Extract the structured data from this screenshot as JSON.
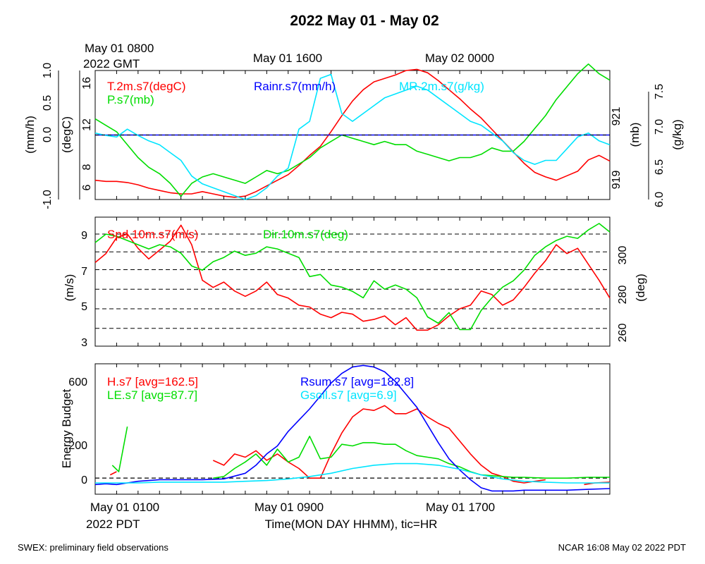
{
  "title": "2022 May 01 - May 02",
  "footer": {
    "left": "SWEX: preliminary field observations",
    "right": "NCAR 16:08 May 02 2022 PDT"
  },
  "top_time_axis": {
    "start_label_line1": "May 01 0800",
    "start_label_line2": "2022 GMT",
    "labels": [
      "May 01 1600",
      "May 02 0000"
    ]
  },
  "bottom_time_axis": {
    "labels": [
      "May 01 0100",
      "May 01 0900",
      "May 01 1700"
    ],
    "start_label_line2": "2022 PDT",
    "xlabel": "Time(MON DAY HHMM), tic=HR",
    "range_hours_pdt": [
      0,
      24
    ]
  },
  "colors": {
    "red": "#ff0000",
    "green": "#00dd00",
    "blue": "#0000ff",
    "cyan": "#00e5ff",
    "black": "#000000"
  },
  "chart_data": [
    {
      "type": "line",
      "panel": "thermo",
      "legend": [
        "T.2m.s7(degC)",
        "P.s7(mb)",
        "Rainr.s7(mm/h)",
        "MR.2m.s7(g/kg)"
      ],
      "axes": {
        "rain": {
          "label": "(mm/h)",
          "ticks": [
            "1.0",
            "0.5",
            "0.0",
            "-1.0"
          ],
          "range": [
            -1.0,
            1.0
          ]
        },
        "temp": {
          "label": "(degC)",
          "ticks": [
            "16",
            "12",
            "8",
            "6"
          ],
          "range": [
            5.3,
            16.7
          ]
        },
        "pres": {
          "label": "(mb)",
          "ticks": [
            "921",
            "919"
          ],
          "range": [
            918.3,
            922.3
          ]
        },
        "mr": {
          "label": "(g/kg)",
          "ticks": [
            "7.5",
            "7.0",
            "6.5",
            "6.0"
          ],
          "range": [
            6.0,
            7.65
          ]
        }
      },
      "series": [
        {
          "name": "T.2m.s7(degC)",
          "color": "red",
          "axis": "temp",
          "x": [
            0,
            0.5,
            1,
            1.5,
            2,
            2.5,
            3,
            3.5,
            4,
            4.5,
            5,
            5.5,
            6,
            6.5,
            7,
            7.5,
            8,
            8.5,
            9,
            9.5,
            10,
            10.5,
            11,
            11.5,
            12,
            12.5,
            13,
            13.5,
            14,
            14.5,
            15,
            15.5,
            16,
            16.5,
            17,
            17.5,
            18,
            18.5,
            19,
            19.5,
            20,
            20.5,
            21,
            21.5,
            22,
            22.5,
            23,
            23.5,
            24
          ],
          "y": [
            7.0,
            6.9,
            6.9,
            6.8,
            6.6,
            6.3,
            6.1,
            5.9,
            5.8,
            5.8,
            6.0,
            5.8,
            5.6,
            5.5,
            5.6,
            6.0,
            6.5,
            7.0,
            7.5,
            8.3,
            9.2,
            10.0,
            11.3,
            12.7,
            14.0,
            15.0,
            15.7,
            16.0,
            16.3,
            16.7,
            16.8,
            16.5,
            15.8,
            15.0,
            14.2,
            13.3,
            12.5,
            11.5,
            10.5,
            9.5,
            8.5,
            7.7,
            7.3,
            7.0,
            7.4,
            7.8,
            8.8,
            9.2,
            8.7
          ]
        },
        {
          "name": "P.s7(mb)",
          "color": "green",
          "axis": "pres",
          "x": [
            0,
            0.5,
            1,
            1.5,
            2,
            2.5,
            3,
            3.5,
            4,
            4.5,
            5,
            5.5,
            6,
            6.5,
            7,
            7.5,
            8,
            8.5,
            9,
            9.5,
            10,
            10.5,
            11,
            11.5,
            12,
            12.5,
            13,
            13.5,
            14,
            14.5,
            15,
            15.5,
            16,
            16.5,
            17,
            17.5,
            18,
            18.5,
            19,
            19.5,
            20,
            20.5,
            21,
            21.5,
            22,
            22.5,
            23,
            23.5,
            24
          ],
          "y": [
            920.8,
            920.6,
            920.4,
            920.0,
            919.6,
            919.3,
            919.1,
            918.8,
            918.4,
            918.8,
            919.0,
            919.1,
            919.0,
            918.9,
            918.8,
            919.0,
            919.2,
            919.1,
            919.2,
            919.4,
            919.6,
            919.9,
            920.1,
            920.3,
            920.2,
            920.1,
            920.0,
            920.1,
            920.0,
            920.0,
            919.8,
            919.7,
            919.6,
            919.5,
            919.6,
            919.6,
            919.7,
            919.9,
            919.8,
            919.8,
            920.1,
            920.5,
            920.9,
            921.4,
            921.8,
            922.2,
            922.5,
            922.2,
            922.0
          ]
        },
        {
          "name": "Rainr.s7(mm/h)",
          "color": "blue",
          "axis": "rain",
          "x": [
            0,
            24
          ],
          "y": [
            0,
            0
          ]
        },
        {
          "name": "MR.2m.s7(g/kg)",
          "color": "cyan",
          "axis": "mr",
          "x": [
            0,
            0.5,
            1,
            1.5,
            2,
            2.5,
            3,
            3.5,
            4,
            4.5,
            5,
            5.5,
            6,
            6.5,
            7,
            7.5,
            8,
            8.5,
            9,
            9.5,
            10,
            10.5,
            11,
            11.5,
            12,
            12.5,
            13,
            13.5,
            14,
            14.5,
            15,
            15.5,
            16,
            16.5,
            17,
            17.5,
            18,
            18.5,
            19,
            19.5,
            20,
            20.5,
            21,
            21.5,
            22,
            22.5,
            23,
            23.5,
            24
          ],
          "y": [
            6.85,
            6.82,
            6.8,
            6.9,
            6.82,
            6.75,
            6.7,
            6.6,
            6.5,
            6.3,
            6.2,
            6.15,
            6.1,
            6.05,
            6.0,
            6.05,
            6.15,
            6.3,
            6.4,
            6.9,
            7.0,
            7.55,
            7.6,
            7.1,
            7.0,
            7.1,
            7.2,
            7.3,
            7.35,
            7.4,
            7.45,
            7.4,
            7.3,
            7.2,
            7.1,
            7.0,
            6.95,
            6.85,
            6.75,
            6.6,
            6.5,
            6.45,
            6.5,
            6.5,
            6.65,
            6.8,
            6.85,
            6.75,
            6.7
          ]
        }
      ]
    },
    {
      "type": "line",
      "panel": "wind",
      "legend": [
        "Spd.10m.s7(m/s)",
        "Dir.10m.s7(deg)"
      ],
      "axes": {
        "spd": {
          "label": "(m/s)",
          "ticks": [
            "9",
            "7",
            "5",
            "3"
          ],
          "range": [
            2.7,
            9.95
          ]
        },
        "dir": {
          "label": "(deg)",
          "ticks": [
            "300",
            "280",
            "260"
          ],
          "range": [
            254.2,
            315
          ]
        }
      },
      "series": [
        {
          "name": "Spd.10m.s7(m/s)",
          "color": "red",
          "axis": "spd",
          "x": [
            0,
            0.5,
            1,
            1.5,
            2,
            2.5,
            3,
            3.5,
            4,
            4.5,
            5,
            5.5,
            6,
            6.5,
            7,
            7.5,
            8,
            8.5,
            9,
            9.5,
            10,
            10.5,
            11,
            11.5,
            12,
            12.5,
            13,
            13.5,
            14,
            14.5,
            15,
            15.5,
            16,
            16.5,
            17,
            17.5,
            18,
            18.5,
            19,
            19.5,
            20,
            20.5,
            21,
            21.5,
            22,
            22.5,
            23,
            23.5,
            24
          ],
          "y": [
            7.4,
            7.9,
            8.8,
            9.0,
            8.2,
            7.6,
            8.1,
            8.6,
            9.5,
            8.4,
            6.4,
            6.0,
            6.3,
            5.8,
            5.5,
            5.8,
            6.3,
            5.6,
            5.4,
            5.0,
            4.9,
            4.5,
            4.3,
            4.6,
            4.5,
            4.1,
            4.2,
            4.4,
            3.9,
            4.3,
            3.6,
            3.6,
            3.9,
            4.4,
            4.8,
            5.0,
            5.8,
            5.6,
            5.0,
            5.3,
            6.0,
            6.8,
            7.5,
            8.4,
            7.9,
            8.2,
            7.3,
            6.4,
            5.4
          ]
        },
        {
          "name": "Dir.10m.s7(deg)",
          "color": "green",
          "axis": "dir",
          "x": [
            0,
            0.5,
            1,
            1.5,
            2,
            2.5,
            3,
            3.5,
            4,
            4.5,
            5,
            5.5,
            6,
            6.5,
            7,
            7.5,
            8,
            8.5,
            9,
            9.5,
            10,
            10.5,
            11,
            11.5,
            12,
            12.5,
            13,
            13.5,
            14,
            14.5,
            15,
            15.5,
            16,
            16.5,
            17,
            17.5,
            18,
            18.5,
            19,
            19.5,
            20,
            20.5,
            21,
            21.5,
            22,
            22.5,
            23,
            23.5,
            24
          ],
          "y": [
            303,
            307,
            306,
            304,
            302,
            300,
            302,
            301,
            298,
            292,
            290,
            294,
            296,
            299,
            297,
            298,
            301,
            300,
            298,
            296,
            287,
            288,
            283,
            282,
            280,
            277,
            285,
            281,
            283,
            281,
            277,
            268,
            265,
            270,
            262,
            262,
            271,
            277,
            282,
            285,
            290,
            297,
            301,
            304,
            306,
            305,
            309,
            312,
            308
          ]
        }
      ]
    },
    {
      "type": "line",
      "panel": "energy",
      "ylabel": "Energy Budget",
      "yticks": [
        "600",
        "200",
        "0"
      ],
      "ylim": [
        -100,
        710
      ],
      "legend": [
        "H.s7 [avg=162.5]",
        "LE.s7 [avg=87.7]",
        "Rsum.s7 [avg=182.8]",
        "Gsoil.s7 [avg=6.9]"
      ],
      "series": [
        {
          "name": "H.s7 [avg=162.5]",
          "color": "red",
          "x": [
            0.7,
            1.0,
            null,
            5.5,
            6.0,
            6.5,
            7.0,
            7.5,
            8.0,
            8.5,
            9.0,
            9.5,
            10.0,
            10.5,
            11.0,
            11.5,
            12.0,
            12.5,
            13.0,
            13.5,
            14.0,
            14.5,
            15.0,
            15.5,
            16.0,
            16.5,
            17.0,
            17.5,
            18.0,
            18.5,
            19.0,
            19.5,
            20.0,
            20.5,
            21.0,
            null,
            22.8,
            23.3,
            24.0
          ],
          "y": [
            20,
            40,
            null,
            110,
            80,
            150,
            130,
            170,
            110,
            150,
            100,
            60,
            0,
            0,
            150,
            280,
            380,
            430,
            420,
            450,
            400,
            400,
            430,
            380,
            340,
            310,
            230,
            150,
            80,
            30,
            10,
            -20,
            -30,
            -20,
            -10,
            null,
            -40,
            -30,
            -25
          ]
        },
        {
          "name": "LE.s7 [avg=87.7]",
          "color": "green",
          "x": [
            0.8,
            1.1,
            1.5,
            null,
            5.5,
            6.0,
            6.5,
            7.0,
            7.5,
            8.0,
            8.5,
            9.0,
            9.5,
            10.0,
            10.5,
            11.0,
            11.5,
            12.0,
            12.5,
            13.0,
            13.5,
            14.0,
            14.5,
            15.0,
            15.5,
            16.0,
            16.5,
            17.0,
            17.5,
            18.0,
            18.5,
            19.0,
            19.5,
            20.0,
            21.0,
            22.0,
            23.0,
            24.0
          ],
          "y": [
            80,
            40,
            320,
            null,
            0,
            10,
            60,
            100,
            150,
            80,
            180,
            100,
            130,
            260,
            120,
            130,
            210,
            200,
            220,
            220,
            210,
            210,
            170,
            140,
            130,
            120,
            90,
            70,
            40,
            20,
            15,
            10,
            5,
            5,
            0,
            0,
            5,
            5
          ]
        },
        {
          "name": "Rsum.s7 [avg=182.8]",
          "color": "blue",
          "x": [
            0,
            0.5,
            1,
            1.5,
            2,
            3,
            4,
            5,
            6,
            7,
            7.5,
            8,
            8.5,
            9,
            9.5,
            10,
            10.5,
            11,
            11.5,
            12,
            12.5,
            13,
            13.5,
            14,
            14.5,
            15,
            15.5,
            16,
            16.5,
            17,
            17.5,
            18,
            18.5,
            19,
            19.5,
            20,
            21,
            22,
            23,
            24
          ],
          "y": [
            -40,
            -35,
            -40,
            -30,
            -20,
            -10,
            -10,
            -10,
            -5,
            30,
            80,
            150,
            200,
            290,
            360,
            430,
            510,
            590,
            650,
            690,
            700,
            690,
            660,
            600,
            520,
            440,
            330,
            220,
            120,
            50,
            -10,
            -60,
            -80,
            -80,
            -80,
            -75,
            -75,
            -75,
            -70,
            -65
          ]
        },
        {
          "name": "Gsoil.s7 [avg=6.9]",
          "color": "cyan",
          "x": [
            0,
            1,
            2,
            3,
            4,
            5,
            6,
            7,
            8,
            9,
            10,
            11,
            12,
            13,
            14,
            15,
            16,
            17,
            18,
            19,
            20,
            21,
            22,
            23,
            24
          ],
          "y": [
            -30,
            -30,
            -30,
            -25,
            -25,
            -25,
            -25,
            -20,
            -15,
            -5,
            10,
            30,
            60,
            80,
            90,
            90,
            80,
            55,
            20,
            -5,
            -20,
            -25,
            -30,
            -30,
            -30
          ]
        }
      ]
    }
  ]
}
